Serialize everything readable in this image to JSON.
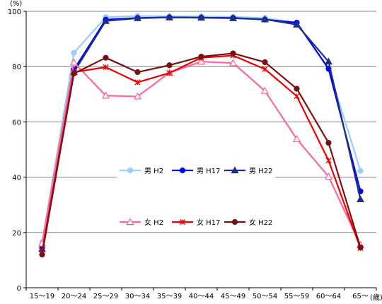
{
  "chart_data": {
    "type": "line",
    "unit_y": "(%)",
    "unit_x": "(歳)",
    "ylim": [
      0,
      100
    ],
    "yticks": [
      0,
      20,
      40,
      60,
      80,
      100
    ],
    "grid": "horizontal",
    "categories": [
      "15～19",
      "20～24",
      "25～29",
      "30～34",
      "35～39",
      "40～44",
      "45～49",
      "50～54",
      "55～59",
      "60～64",
      "65～"
    ],
    "series": [
      {
        "name": "男 H2",
        "color": "#99ccff",
        "marker": "circle",
        "values": [
          16.5,
          85.0,
          97.9,
          98.3,
          98.2,
          98.2,
          98.0,
          97.6,
          95.8,
          79.4,
          42.3
        ]
      },
      {
        "name": "男 H17",
        "color": "#0000ff",
        "marker": "circle",
        "values": [
          14.5,
          78.9,
          97.0,
          97.6,
          97.8,
          97.7,
          97.6,
          97.0,
          95.9,
          79.2,
          34.9
        ]
      },
      {
        "name": "男 H22",
        "color": "#1f2f7f",
        "marker": "triangle",
        "values": [
          14.0,
          78.0,
          96.5,
          97.5,
          97.8,
          97.7,
          97.5,
          97.1,
          95.2,
          81.8,
          32.0
        ]
      },
      {
        "name": "女 H2",
        "color": "#ff6699",
        "marker": "triangle-open",
        "values": [
          16.0,
          81.5,
          69.5,
          69.2,
          77.8,
          81.8,
          81.3,
          71.2,
          53.8,
          40.2,
          15.5
        ]
      },
      {
        "name": "女 H17",
        "color": "#ee0000",
        "marker": "x",
        "values": [
          13.0,
          78.0,
          79.8,
          74.3,
          77.7,
          83.2,
          84.0,
          79.1,
          69.3,
          46.0,
          14.3
        ]
      },
      {
        "name": "女 H22",
        "color": "#7a1010",
        "marker": "circle",
        "values": [
          12.0,
          77.5,
          83.2,
          78.0,
          80.5,
          83.6,
          84.8,
          81.6,
          72.0,
          52.4,
          14.6
        ]
      }
    ]
  }
}
